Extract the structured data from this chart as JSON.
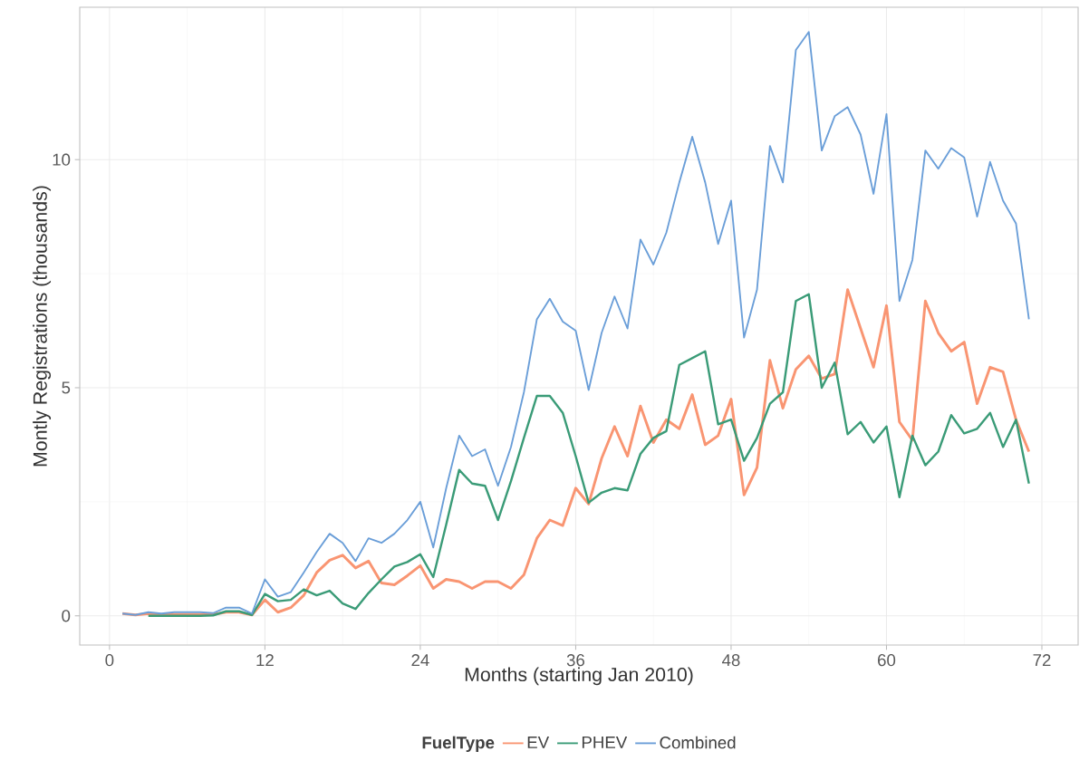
{
  "chart_data": {
    "type": "line",
    "xlabel": "Months (starting Jan 2010)",
    "ylabel": "Montly Registrations (thousands)",
    "legend_title": "FuelType",
    "xlim": [
      -2.3,
      74.8
    ],
    "ylim": [
      -0.64,
      13.34
    ],
    "xticks": [
      0,
      12,
      24,
      36,
      48,
      60,
      72
    ],
    "yticks": [
      0,
      5,
      10
    ],
    "grid": true,
    "legend": "bottom",
    "series": [
      {
        "name": "EV",
        "color": "#f99572",
        "x": [
          1,
          2,
          3,
          4,
          5,
          6,
          7,
          8,
          9,
          10,
          11,
          12,
          13,
          14,
          15,
          16,
          17,
          18,
          19,
          20,
          21,
          22,
          23,
          24,
          25,
          26,
          27,
          28,
          29,
          30,
          31,
          32,
          33,
          34,
          35,
          36,
          37,
          38,
          39,
          40,
          41,
          42,
          43,
          44,
          45,
          46,
          47,
          48,
          49,
          50,
          51,
          52,
          53,
          54,
          55,
          56,
          57,
          58,
          59,
          60,
          61,
          62,
          63,
          64,
          65,
          66,
          67,
          68,
          69,
          70,
          71
        ],
        "values": [
          0.05,
          0.02,
          0.05,
          0.02,
          0.03,
          0.03,
          0.03,
          0.03,
          0.08,
          0.08,
          0.02,
          0.35,
          0.08,
          0.18,
          0.45,
          0.95,
          1.22,
          1.33,
          1.05,
          1.2,
          0.72,
          0.68,
          0.88,
          1.1,
          0.6,
          0.8,
          0.75,
          0.6,
          0.75,
          0.75,
          0.6,
          0.9,
          1.7,
          2.1,
          1.98,
          2.8,
          2.45,
          3.45,
          4.15,
          3.5,
          4.6,
          3.8,
          4.3,
          4.1,
          4.85,
          3.75,
          3.95,
          4.75,
          2.65,
          3.25,
          5.6,
          4.55,
          5.4,
          5.7,
          5.2,
          5.3,
          7.15,
          6.3,
          5.45,
          6.8,
          4.25,
          3.85,
          6.9,
          6.2,
          5.8,
          6.0,
          4.65,
          5.45,
          5.35,
          4.3,
          3.6
        ]
      },
      {
        "name": "PHEV",
        "color": "#3a9b77",
        "x": [
          3,
          4,
          5,
          6,
          7,
          8,
          9,
          10,
          11,
          12,
          13,
          14,
          15,
          16,
          17,
          18,
          19,
          20,
          21,
          22,
          23,
          24,
          25,
          26,
          27,
          28,
          29,
          30,
          31,
          32,
          33,
          34,
          35,
          36,
          37,
          38,
          39,
          40,
          41,
          42,
          43,
          44,
          45,
          46,
          47,
          48,
          49,
          50,
          51,
          52,
          53,
          54,
          55,
          56,
          57,
          58,
          59,
          60,
          61,
          62,
          63,
          64,
          65,
          66,
          67,
          68,
          69,
          70,
          71
        ],
        "values": [
          0.0,
          0.0,
          0.0,
          0.0,
          0.0,
          0.01,
          0.1,
          0.1,
          0.02,
          0.48,
          0.32,
          0.35,
          0.58,
          0.45,
          0.55,
          0.27,
          0.15,
          0.5,
          0.8,
          1.08,
          1.18,
          1.35,
          0.85,
          2.0,
          3.2,
          2.9,
          2.85,
          2.1,
          2.95,
          3.9,
          4.82,
          4.82,
          4.45,
          3.5,
          2.48,
          2.7,
          2.8,
          2.75,
          3.55,
          3.9,
          4.05,
          5.5,
          5.65,
          5.8,
          4.2,
          4.3,
          3.4,
          3.9,
          4.65,
          4.9,
          6.9,
          7.05,
          5.0,
          5.55,
          3.98,
          4.25,
          3.8,
          4.15,
          2.6,
          3.95,
          3.3,
          3.6,
          4.4,
          4.0,
          4.1,
          4.45,
          3.7,
          4.3,
          2.9
        ]
      },
      {
        "name": "Combined",
        "color": "#6a9ed8",
        "x": [
          1,
          2,
          3,
          4,
          5,
          6,
          7,
          8,
          9,
          10,
          11,
          12,
          13,
          14,
          15,
          16,
          17,
          18,
          19,
          20,
          21,
          22,
          23,
          24,
          25,
          26,
          27,
          28,
          29,
          30,
          31,
          32,
          33,
          34,
          35,
          36,
          37,
          38,
          39,
          40,
          41,
          42,
          43,
          44,
          45,
          46,
          47,
          48,
          49,
          50,
          51,
          52,
          53,
          54,
          55,
          56,
          57,
          58,
          59,
          60,
          61,
          62,
          63,
          64,
          65,
          66,
          67,
          68,
          69,
          70,
          71
        ],
        "values": [
          0.05,
          0.02,
          0.08,
          0.05,
          0.08,
          0.08,
          0.08,
          0.06,
          0.18,
          0.18,
          0.05,
          0.8,
          0.42,
          0.52,
          0.95,
          1.4,
          1.8,
          1.6,
          1.2,
          1.7,
          1.6,
          1.8,
          2.1,
          2.5,
          1.5,
          2.8,
          3.95,
          3.5,
          3.65,
          2.85,
          3.7,
          4.9,
          6.5,
          6.95,
          6.45,
          6.25,
          4.95,
          6.2,
          7.0,
          6.3,
          8.25,
          7.7,
          8.4,
          9.5,
          10.5,
          9.5,
          8.15,
          9.1,
          6.1,
          7.15,
          10.3,
          9.5,
          12.4,
          12.8,
          10.2,
          10.95,
          11.15,
          10.55,
          9.25,
          11.0,
          6.9,
          7.8,
          10.2,
          9.8,
          10.25,
          10.05,
          8.75,
          9.95,
          9.1,
          8.6,
          6.5
        ]
      }
    ]
  }
}
